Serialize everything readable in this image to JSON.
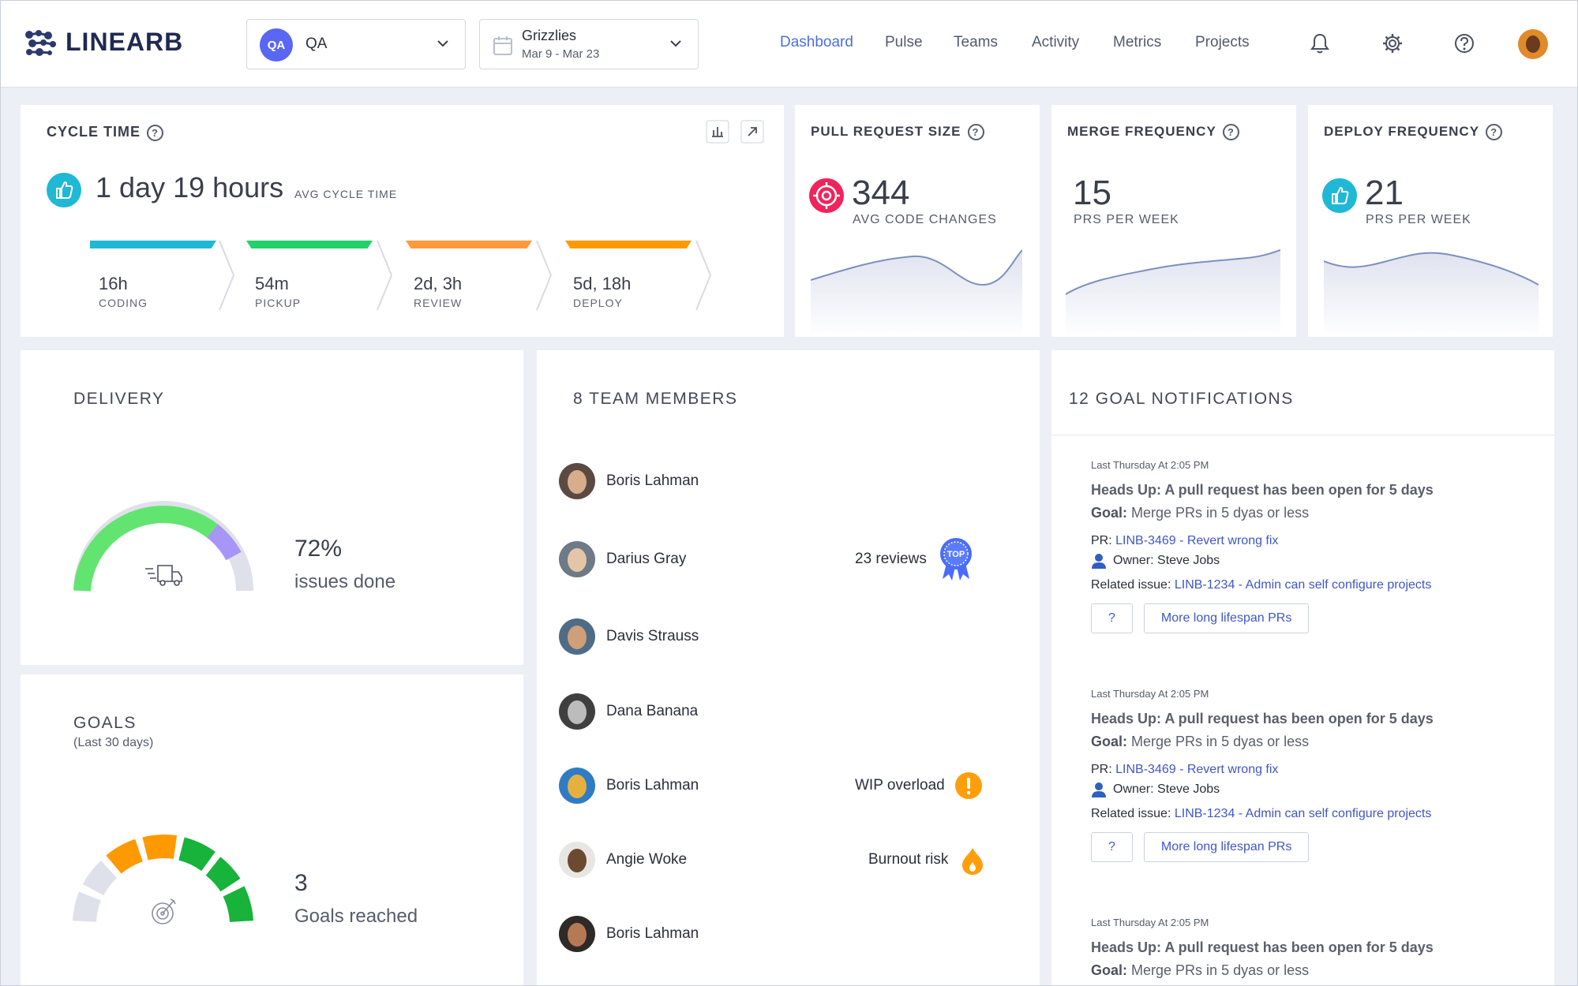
{
  "brand": {
    "logo_text": "LINEARB"
  },
  "team_select": {
    "badge": "QA",
    "name": "QA"
  },
  "date_select": {
    "team": "Grizzlies",
    "range": "Mar 9 - Mar 23"
  },
  "nav": {
    "items": [
      "Dashboard",
      "Pulse",
      "Teams",
      "Activity",
      "Metrics",
      "Projects"
    ],
    "active": "Dashboard"
  },
  "cycle_time": {
    "title": "CYCLE TIME",
    "value": "1 day 19 hours",
    "value_label": "AVG CYCLE TIME",
    "stages": [
      {
        "value": "16h",
        "label": "CODING",
        "color": "#1fb8d6"
      },
      {
        "value": "54m",
        "label": "PICKUP",
        "color": "#22d16b"
      },
      {
        "value": "2d, 3h",
        "label": "REVIEW",
        "color": "#ff9a3c"
      },
      {
        "value": "5d, 18h",
        "label": "DEPLOY",
        "color": "#ff9900"
      }
    ]
  },
  "pr_size": {
    "title": "PULL REQUEST SIZE",
    "value": "344",
    "label": "AVG CODE CHANGES"
  },
  "merge_freq": {
    "title": "MERGE FREQUENCY",
    "value": "15",
    "label": "PRS PER WEEK"
  },
  "deploy_freq": {
    "title": "DEPLOY FREQUENCY",
    "value": "21",
    "label": "PRS PER WEEK"
  },
  "delivery": {
    "title": "DELIVERY",
    "percent": "72%",
    "label": "issues done",
    "progress": 0.72
  },
  "goals": {
    "title": "GOALS",
    "subtitle": "(Last 30 days)",
    "count": "3",
    "label": "Goals reached"
  },
  "team": {
    "title": "8 TEAM MEMBERS",
    "members": [
      {
        "name": "Boris Lahman",
        "stat": ""
      },
      {
        "name": "Darius Gray",
        "stat": "23 reviews",
        "badge": "TOP"
      },
      {
        "name": "Davis Strauss",
        "stat": ""
      },
      {
        "name": "Dana Banana",
        "stat": ""
      },
      {
        "name": "Boris Lahman",
        "stat": "WIP overload"
      },
      {
        "name": "Angie Woke",
        "stat": "Burnout risk"
      },
      {
        "name": "Boris Lahman",
        "stat": ""
      }
    ]
  },
  "notifications": {
    "title": "12 GOAL NOTIFICATIONS",
    "items": [
      {
        "time": "Last Thursday At 2:05 PM",
        "head": "Heads Up: A pull request has been open for 5 days",
        "goal_label": "Goal:",
        "goal": "Merge PRs in 5 dyas or less",
        "pr_label": "PR:",
        "pr": "LINB-3469 - Revert wrong fix",
        "owner": "Owner: Steve Jobs",
        "issue_label": "Related issue:",
        "issue": "LINB-1234 - Admin can self configure projects",
        "btn1": "?",
        "btn2": "More long lifespan PRs"
      },
      {
        "time": "Last Thursday At 2:05 PM",
        "head": "Heads Up: A pull request has been open for 5 days",
        "goal_label": "Goal:",
        "goal": "Merge PRs in 5 dyas or less",
        "pr_label": "PR:",
        "pr": "LINB-3469 - Revert wrong fix",
        "owner": "Owner: Steve Jobs",
        "issue_label": "Related issue:",
        "issue": "LINB-1234 - Admin can self configure projects",
        "btn1": "?",
        "btn2": "More long lifespan PRs"
      },
      {
        "time": "Last Thursday At 2:05 PM",
        "head": "Heads Up: A pull request has been open for 5 days",
        "goal_label": "Goal:",
        "goal": "Merge PRs in 5 dyas or less"
      }
    ]
  }
}
